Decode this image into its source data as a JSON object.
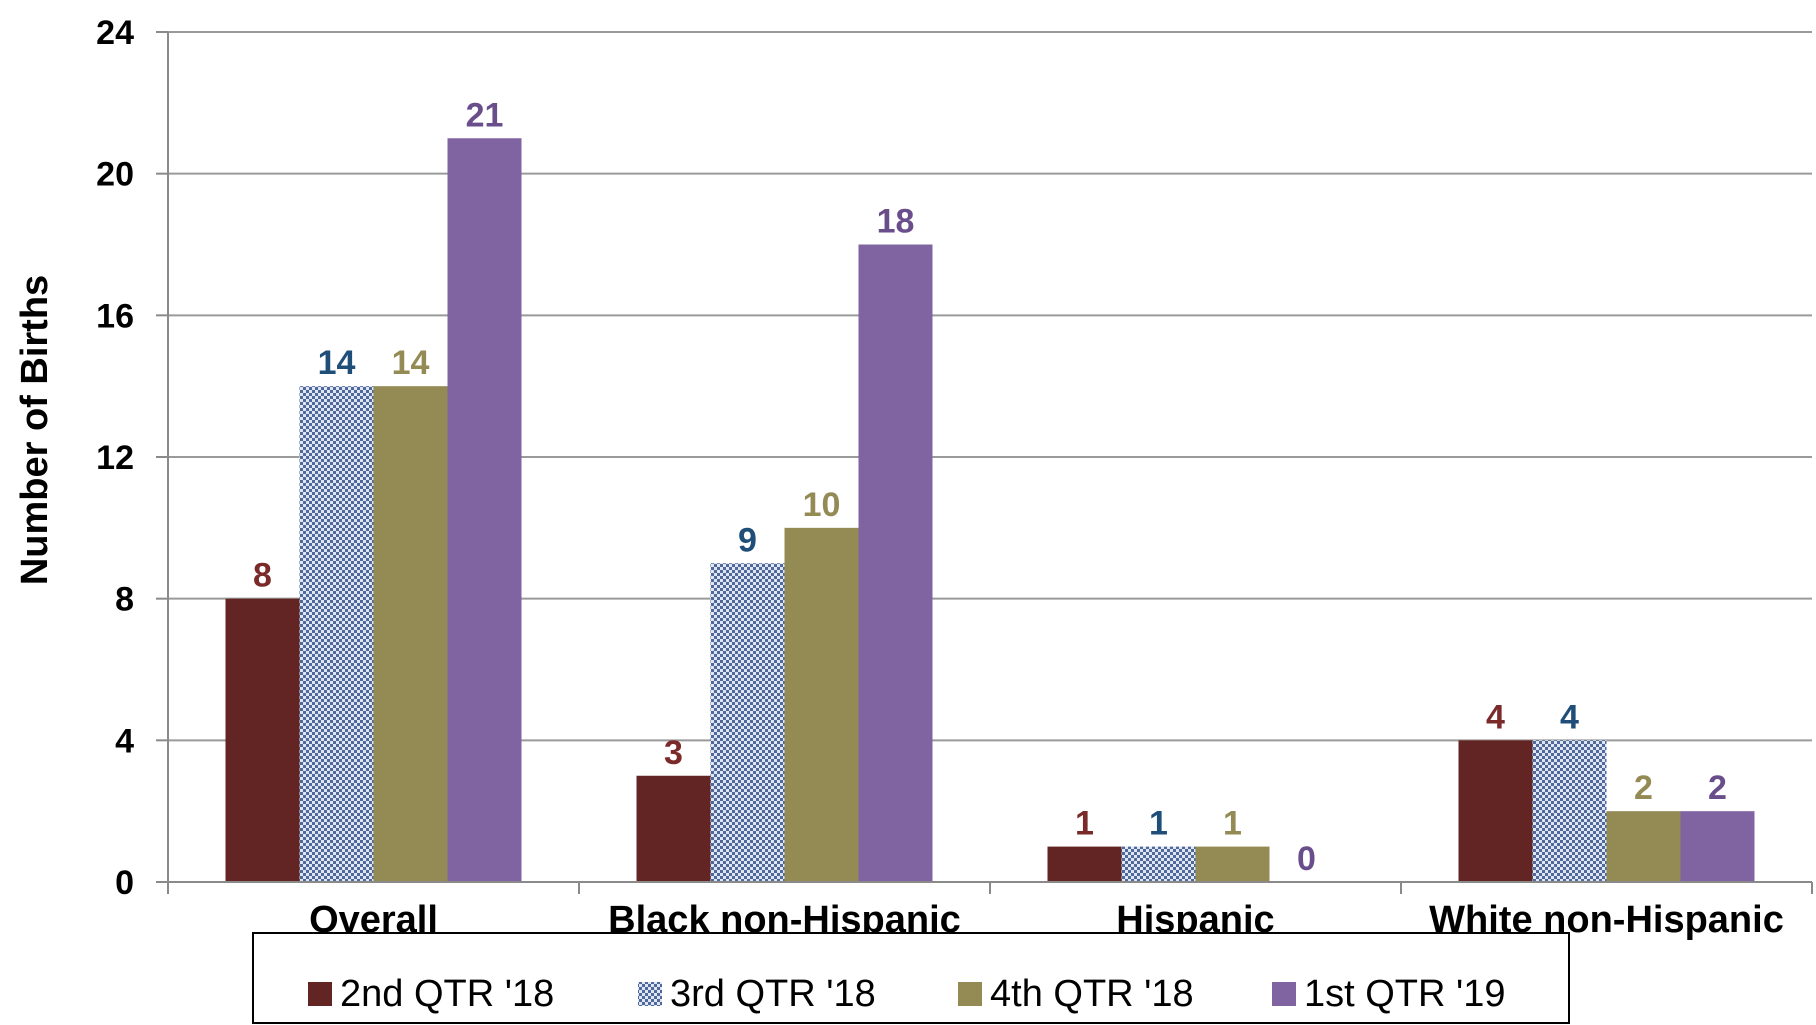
{
  "chart_data": {
    "type": "bar",
    "ylabel": "Number of Births",
    "xlabel": "",
    "ylim": [
      0,
      24
    ],
    "yticks": [
      0,
      4,
      8,
      12,
      16,
      20,
      24
    ],
    "grid": true,
    "legend_position": "bottom",
    "categories": [
      "Overall",
      "Black non-Hispanic",
      "Hispanic",
      "White non-Hispanic"
    ],
    "series": [
      {
        "name": "2nd QTR '18",
        "values": [
          8,
          3,
          1,
          4
        ],
        "color": "#632523",
        "label_color": "#7a2a28",
        "pattern": "solid"
      },
      {
        "name": "3rd QTR '18",
        "values": [
          14,
          9,
          1,
          4
        ],
        "color": "#4f6a9a",
        "label_color": "#1f4e79",
        "pattern": "checker"
      },
      {
        "name": "4th QTR '18",
        "values": [
          14,
          10,
          1,
          2
        ],
        "color": "#948a54",
        "label_color": "#948a54",
        "pattern": "solid"
      },
      {
        "name": "1st QTR '19",
        "values": [
          21,
          18,
          0,
          2
        ],
        "color": "#8064a2",
        "label_color": "#6a4e8c",
        "pattern": "solid"
      }
    ]
  }
}
